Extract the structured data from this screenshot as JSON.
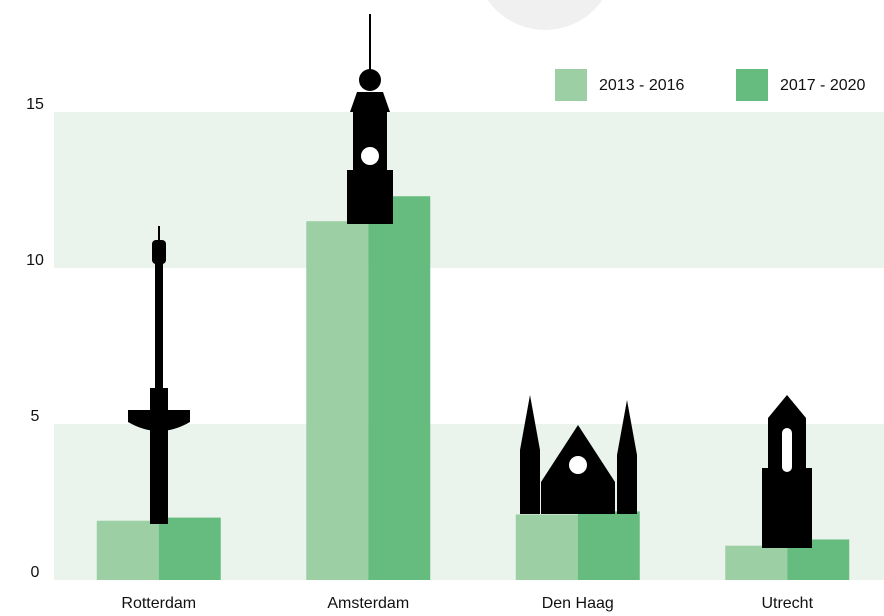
{
  "chart_data": {
    "type": "bar",
    "categories": [
      "Rotterdam",
      "Amsterdam",
      "Den Haag",
      "Utrecht"
    ],
    "series": [
      {
        "name": "2013 - 2016",
        "color": "#9ccfa4",
        "values": [
          1.9,
          11.5,
          2.1,
          1.1
        ]
      },
      {
        "name": "2017 - 2020",
        "color": "#66bb7e",
        "values": [
          2.0,
          12.3,
          2.2,
          1.3
        ]
      }
    ],
    "ylim": [
      0,
      15
    ],
    "yticks": [
      0,
      5,
      10,
      15
    ],
    "band_color": "#ebf4ec"
  }
}
